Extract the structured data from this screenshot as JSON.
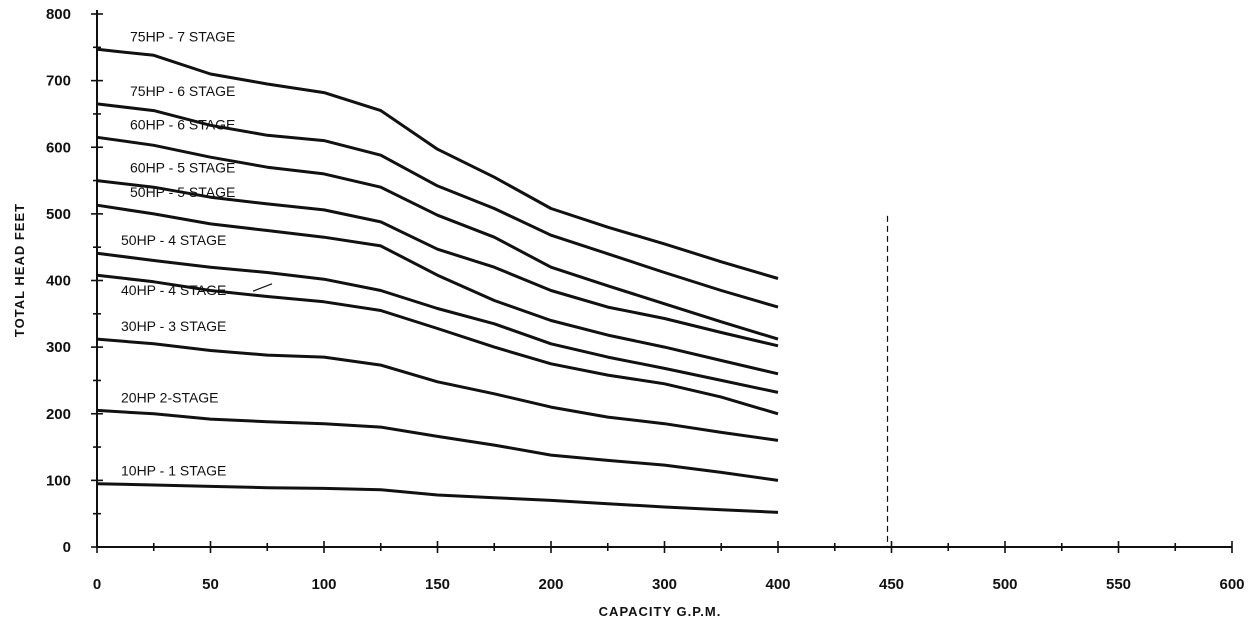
{
  "chart_data": {
    "type": "line",
    "xlabel": "CAPACITY  G.P.M.",
    "ylabel": "TOTAL HEAD FEET",
    "x_tick_labels": [
      "0",
      "50",
      "100",
      "150",
      "200",
      "300",
      "400",
      "450",
      "500",
      "550",
      "600"
    ],
    "y_ticks": [
      0,
      100,
      200,
      300,
      400,
      500,
      600,
      700,
      800
    ],
    "ylim": [
      0,
      800
    ],
    "grid": false,
    "reference_line_at_tick": "450",
    "series": [
      {
        "name": "75HP - 7 STAGE",
        "values": [
          747,
          738,
          710,
          695,
          682,
          655,
          597,
          555,
          508,
          480,
          455,
          428,
          403
        ]
      },
      {
        "name": "75HP - 6 STAGE",
        "values": [
          665,
          655,
          633,
          618,
          610,
          588,
          542,
          508,
          468,
          440,
          412,
          385,
          360
        ]
      },
      {
        "name": "60HP - 6 STAGE",
        "values": [
          615,
          603,
          585,
          570,
          560,
          540,
          498,
          465,
          420,
          392,
          365,
          338,
          312
        ]
      },
      {
        "name": "60HP - 5 STAGE",
        "values": [
          550,
          540,
          525,
          515,
          506,
          488,
          447,
          420,
          385,
          360,
          343,
          322,
          302
        ]
      },
      {
        "name": "50HP - 5 STAGE",
        "values": [
          513,
          500,
          485,
          475,
          465,
          452,
          408,
          370,
          340,
          318,
          300,
          280,
          260
        ]
      },
      {
        "name": "50HP - 4 STAGE",
        "values": [
          441,
          430,
          420,
          412,
          402,
          385,
          358,
          335,
          305,
          285,
          268,
          250,
          232
        ]
      },
      {
        "name": "40HP - 4 STAGE",
        "values": [
          408,
          398,
          385,
          376,
          368,
          355,
          328,
          300,
          275,
          258,
          245,
          225,
          200
        ]
      },
      {
        "name": "30HP - 3 STAGE",
        "values": [
          312,
          305,
          295,
          288,
          285,
          273,
          248,
          230,
          210,
          195,
          185,
          172,
          160
        ]
      },
      {
        "name": "20HP 2-STAGE",
        "values": [
          205,
          200,
          192,
          188,
          185,
          180,
          166,
          153,
          138,
          130,
          123,
          112,
          100
        ]
      },
      {
        "name": "10HP - 1 STAGE",
        "values": [
          95,
          93,
          91,
          89,
          88,
          86,
          78,
          74,
          70,
          65,
          60,
          56,
          52
        ]
      }
    ]
  }
}
